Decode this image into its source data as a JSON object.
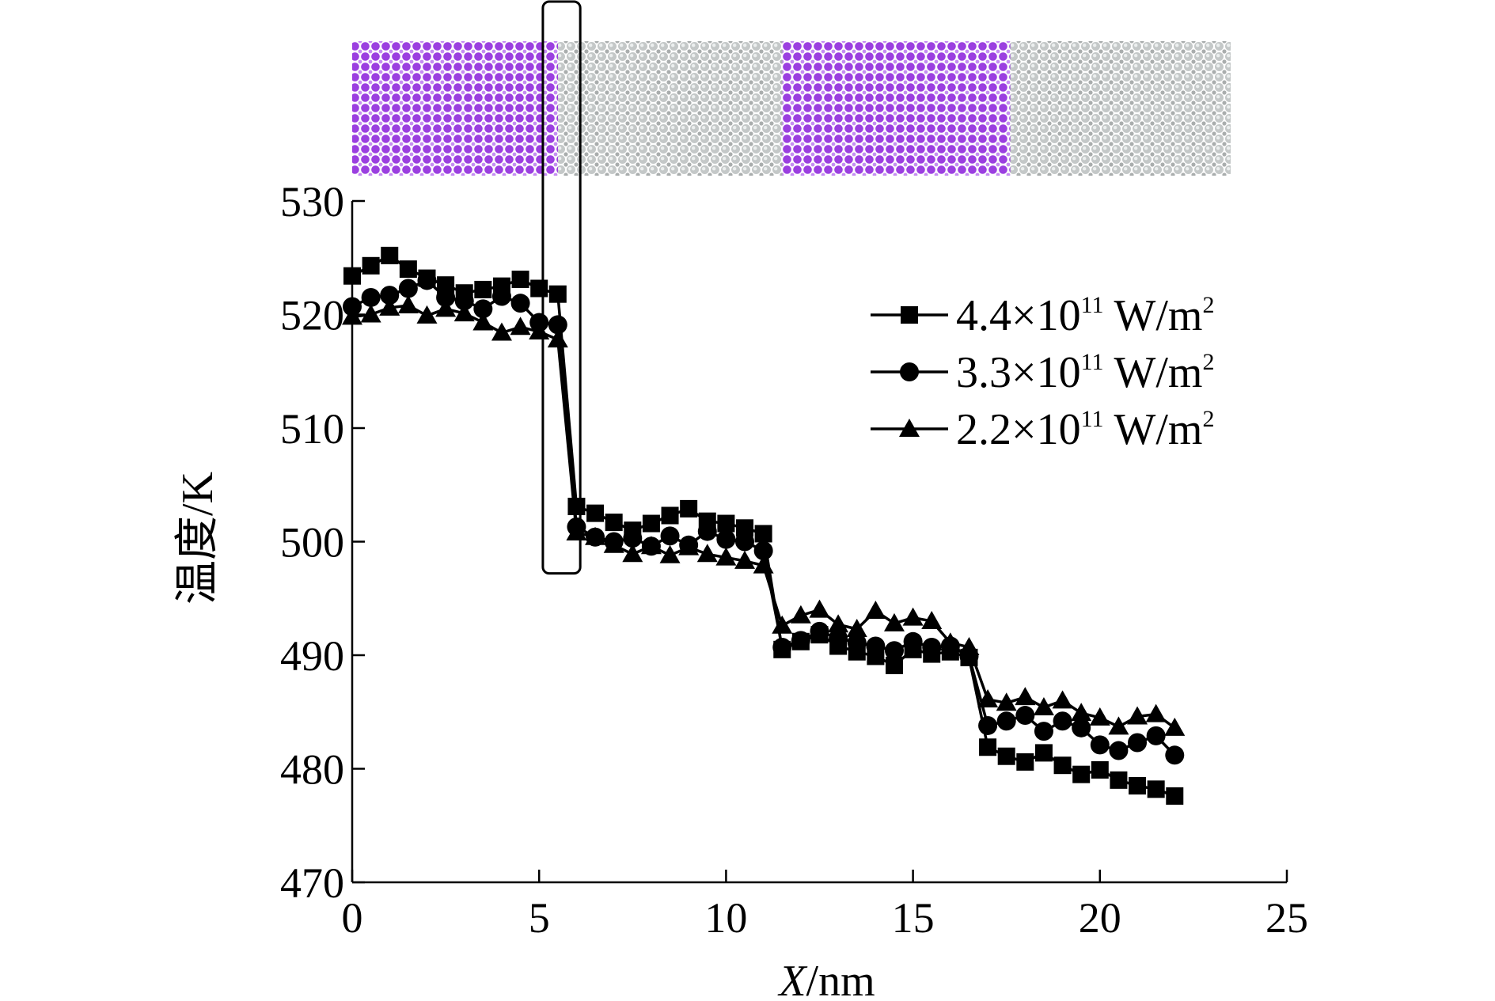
{
  "colors": {
    "series": "#000000",
    "atom_purple": "#9b3fe0",
    "atom_gray": "#c9cdcd",
    "background": "#ffffff"
  },
  "structure_strip": {
    "segments": [
      {
        "material": "purple",
        "x_from": 0.0,
        "x_to": 5.5
      },
      {
        "material": "gray",
        "x_from": 5.5,
        "x_to": 11.5
      },
      {
        "material": "purple",
        "x_from": 11.5,
        "x_to": 17.6
      },
      {
        "material": "gray",
        "x_from": 17.6,
        "x_to": 23.5
      }
    ],
    "highlight_box": {
      "x_from": 5.1,
      "x_to": 6.1,
      "y_from": 497.2
    }
  },
  "chart_data": {
    "type": "line",
    "title": "",
    "xlabel": "X/nm",
    "xlabel_italic": "X",
    "xlabel_rest": "/nm",
    "ylabel": "温度/K",
    "xlim": [
      0,
      25
    ],
    "ylim": [
      470,
      530
    ],
    "xticks": [
      0,
      5,
      10,
      15,
      20,
      25
    ],
    "yticks": [
      470,
      480,
      490,
      500,
      510,
      520,
      530
    ],
    "xtick_labels": [
      "0",
      "5",
      "10",
      "15",
      "20",
      "25"
    ],
    "ytick_labels": [
      "470",
      "480",
      "490",
      "500",
      "510",
      "520",
      "530"
    ],
    "grid": false,
    "legend_position": "top-right",
    "x": [
      0,
      0.5,
      1,
      1.5,
      2,
      2.5,
      3,
      3.5,
      4,
      4.5,
      5,
      5.5,
      6,
      6.5,
      7,
      7.5,
      8,
      8.5,
      9,
      9.5,
      10,
      10.5,
      11,
      11.5,
      12,
      12.5,
      13,
      13.5,
      14,
      14.5,
      15,
      15.5,
      16,
      16.5,
      17,
      17.5,
      18,
      18.5,
      19,
      19.5,
      20,
      20.5,
      21,
      21.5,
      22
    ],
    "series": [
      {
        "name": "4.4×10¹¹ W/m²",
        "legend_base": "4.4×10",
        "legend_exp": "11",
        "legend_unit": " W/m",
        "legend_unit_exp": "2",
        "marker": "square",
        "values": [
          523.4,
          524.3,
          525.2,
          524.0,
          523.2,
          522.6,
          521.9,
          522.2,
          522.5,
          523.1,
          522.3,
          521.8,
          503.1,
          502.5,
          501.7,
          501.0,
          501.6,
          502.3,
          502.9,
          501.8,
          501.6,
          501.2,
          500.7,
          490.5,
          491.2,
          491.8,
          490.8,
          490.3,
          489.9,
          489.1,
          490.5,
          490.1,
          490.3,
          489.8,
          481.9,
          481.1,
          480.6,
          481.4,
          480.3,
          479.5,
          479.9,
          479.0,
          478.5,
          478.2,
          477.6
        ]
      },
      {
        "name": "3.3×10¹¹ W/m²",
        "legend_base": "3.3×10",
        "legend_exp": "11",
        "legend_unit": " W/m",
        "legend_unit_exp": "2",
        "marker": "circle",
        "values": [
          520.7,
          521.5,
          521.7,
          522.3,
          523.0,
          521.5,
          521.2,
          520.5,
          521.6,
          521.0,
          519.3,
          519.1,
          501.3,
          500.4,
          500.0,
          500.3,
          499.6,
          500.5,
          499.7,
          500.9,
          500.2,
          500.0,
          499.2,
          490.7,
          491.3,
          492.1,
          491.5,
          491.1,
          490.8,
          490.4,
          491.2,
          490.7,
          490.8,
          489.9,
          483.8,
          484.2,
          484.7,
          483.3,
          484.2,
          483.6,
          482.1,
          481.6,
          482.3,
          482.9,
          481.2
        ]
      },
      {
        "name": "2.2×10¹¹ W/m²",
        "legend_base": "2.2×10",
        "legend_exp": "11",
        "legend_unit": " W/m",
        "legend_unit_exp": "2",
        "marker": "triangle",
        "values": [
          519.8,
          520.0,
          520.6,
          520.8,
          519.9,
          520.5,
          520.1,
          519.3,
          518.4,
          518.9,
          518.5,
          517.8,
          500.8,
          500.4,
          499.7,
          498.9,
          499.6,
          498.8,
          499.5,
          498.9,
          498.6,
          498.3,
          497.9,
          492.6,
          493.5,
          494.0,
          492.7,
          492.3,
          493.9,
          492.8,
          493.3,
          493.0,
          491.1,
          490.7,
          486.1,
          485.8,
          486.3,
          485.4,
          486.0,
          484.9,
          484.5,
          483.7,
          484.6,
          484.8,
          483.6
        ]
      }
    ]
  }
}
